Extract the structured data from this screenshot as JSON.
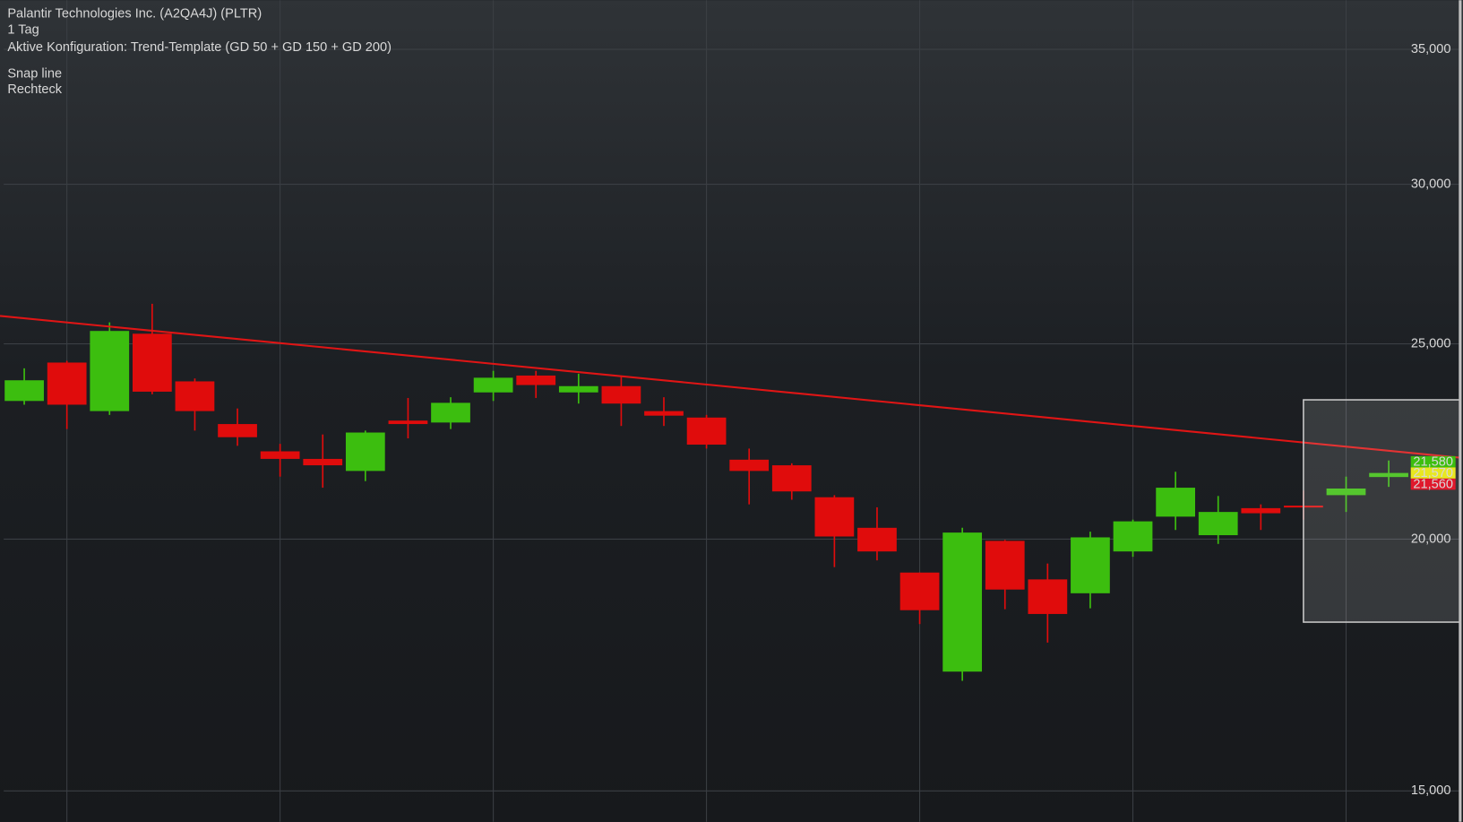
{
  "chart_data": {
    "type": "candlestick",
    "title": "Palantir Technologies Inc. (A2QA4J) (PLTR)",
    "subtitle": "1 Tag",
    "configuration": "Aktive Konfiguration: Trend-Template (GD 50 + GD 150 + GD 200)",
    "categories": [
      null,
      null,
      null,
      null,
      null,
      null,
      null,
      null,
      null,
      null,
      null,
      null,
      null,
      null,
      null,
      null,
      null,
      null,
      null,
      null,
      null,
      null,
      null,
      null,
      null,
      null,
      null,
      null,
      null,
      null,
      null,
      null,
      null
    ],
    "open": [
      23.42,
      24.47,
      23.15,
      25.29,
      23.95,
      22.81,
      22.11,
      21.92,
      21.62,
      22.9,
      22.85,
      23.65,
      24.11,
      23.65,
      23.82,
      23.15,
      22.98,
      21.9,
      21.76,
      20.98,
      20.26,
      19.25,
      17.19,
      19.96,
      19.1,
      18.8,
      19.72,
      20.52,
      20.09,
      20.72,
      20.78,
      21.03,
      21.47
    ],
    "high": [
      24.31,
      24.52,
      25.62,
      26.17,
      24.03,
      23.22,
      22.3,
      22.54,
      22.64,
      23.5,
      23.52,
      24.24,
      24.24,
      24.16,
      24.08,
      23.52,
      23.05,
      22.18,
      21.81,
      21.03,
      20.74,
      19.25,
      20.26,
      19.98,
      19.45,
      20.17,
      20.45,
      21.6,
      21.01,
      20.81,
      21.14,
      21.48,
      21.88
    ],
    "low": [
      23.32,
      22.68,
      23.05,
      23.6,
      22.64,
      22.25,
      21.48,
      21.21,
      21.37,
      22.44,
      22.68,
      23.42,
      23.5,
      23.35,
      22.76,
      22.76,
      22.18,
      20.81,
      20.92,
      19.37,
      19.52,
      18.15,
      17.01,
      18.46,
      17.77,
      18.48,
      19.6,
      20.21,
      19.89,
      20.21,
      20.45,
      20.63,
      21.23
    ],
    "close": [
      23.98,
      23.32,
      25.37,
      23.67,
      23.15,
      22.47,
      21.92,
      21.76,
      22.59,
      22.81,
      23.37,
      24.05,
      23.85,
      23.82,
      23.35,
      23.03,
      22.28,
      21.62,
      21.12,
      20.06,
      19.72,
      18.44,
      20.15,
      18.88,
      18.36,
      20.04,
      20.41,
      21.21,
      20.63,
      20.6,
      20.74,
      21.19,
      21.57
    ],
    "up_color": "#3cbe0f",
    "down_color": "#e00c0c",
    "log_scale": true,
    "ylim": [
      14.48,
      37.02
    ],
    "yticks": [
      {
        "value": 15,
        "label": "15,000"
      },
      {
        "value": 20,
        "label": "20,000"
      },
      {
        "value": 25,
        "label": "25,000"
      },
      {
        "value": 30,
        "label": "30,000"
      },
      {
        "value": 35,
        "label": "35,000"
      }
    ],
    "grid": true,
    "drawings": [
      {
        "name": "Snap line",
        "color": "#e01515",
        "x": [
          0,
          33
        ],
        "values": [
          25.74,
          22.02
        ]
      },
      {
        "name": "Rechteck",
        "color": "#c8c8c8",
        "x": [
          30,
          33.68
        ],
        "values": [
          23.45,
          18.19
        ]
      }
    ],
    "price_labels": [
      {
        "value": 21.58,
        "label": "21,580",
        "color": "#3cbe0f"
      },
      {
        "value": 21.57,
        "label": "21,570",
        "color": "#e8e820"
      },
      {
        "value": 21.56,
        "label": "21,560",
        "color": "#e0182c"
      }
    ]
  }
}
